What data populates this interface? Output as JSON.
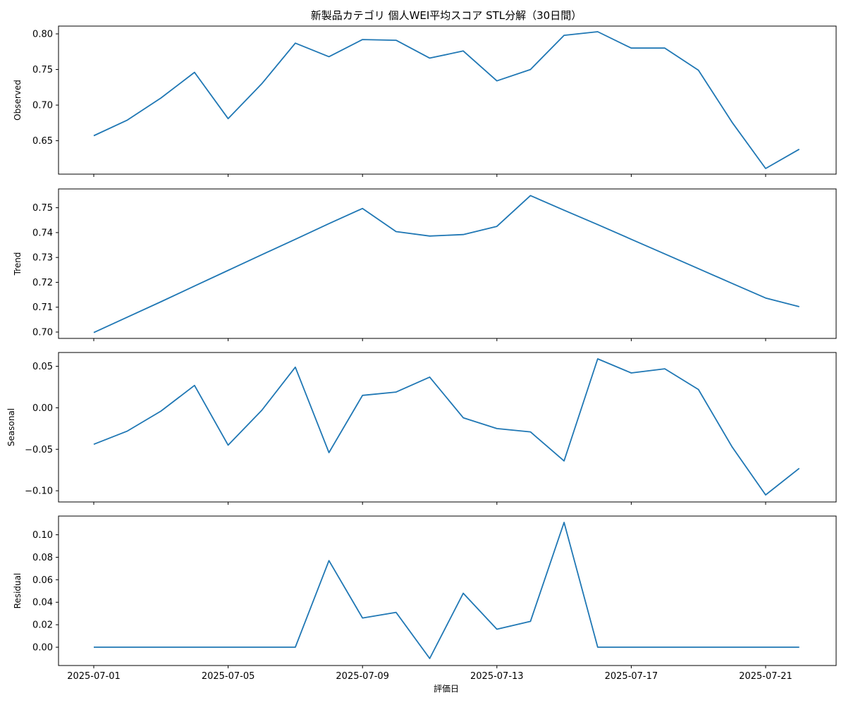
{
  "chart_data": {
    "type": "line",
    "title": "新製品カテゴリ 個人WEI平均スコア STL分解（30日間）",
    "xlabel": "評価日",
    "x": [
      "2025-07-01",
      "2025-07-02",
      "2025-07-03",
      "2025-07-04",
      "2025-07-05",
      "2025-07-06",
      "2025-07-07",
      "2025-07-08",
      "2025-07-09",
      "2025-07-10",
      "2025-07-11",
      "2025-07-12",
      "2025-07-13",
      "2025-07-14",
      "2025-07-15",
      "2025-07-16",
      "2025-07-17",
      "2025-07-18",
      "2025-07-19",
      "2025-07-20",
      "2025-07-21",
      "2025-07-22"
    ],
    "xticks": [
      "2025-07-01",
      "2025-07-05",
      "2025-07-09",
      "2025-07-13",
      "2025-07-17",
      "2025-07-21"
    ],
    "color": "#1f77b4",
    "grid": false,
    "panels": [
      {
        "ylabel": "Observed",
        "ylim": [
          0.611,
          0.803
        ],
        "yticks": [
          "0.65",
          "0.70",
          "0.75",
          "0.80"
        ],
        "values": [
          0.657,
          0.679,
          0.71,
          0.746,
          0.681,
          0.73,
          0.787,
          0.768,
          0.792,
          0.791,
          0.766,
          0.776,
          0.734,
          0.75,
          0.798,
          0.803,
          0.78,
          0.78,
          0.749,
          0.676,
          0.611,
          0.638
        ]
      },
      {
        "ylabel": "Trend",
        "ylim": [
          0.7,
          0.755
        ],
        "yticks": [
          "0.70",
          "0.71",
          "0.72",
          "0.73",
          "0.74",
          "0.75"
        ],
        "values": [
          0.6998,
          0.706,
          0.7122,
          0.7185,
          0.7248,
          0.7311,
          0.7373,
          0.7436,
          0.7497,
          0.7404,
          0.7386,
          0.7392,
          0.7425,
          0.7549,
          0.749,
          0.7432,
          0.7373,
          0.7314,
          0.7255,
          0.7196,
          0.7137,
          0.7102
        ]
      },
      {
        "ylabel": "Seasonal",
        "ylim": [
          -0.105,
          0.059
        ],
        "yticks": [
          "0.05",
          "0.00",
          "−0.05",
          "−0.10"
        ],
        "values": [
          -0.044,
          -0.028,
          -0.004,
          0.027,
          -0.045,
          -0.003,
          0.049,
          -0.054,
          0.015,
          0.019,
          0.037,
          -0.012,
          -0.025,
          -0.029,
          -0.064,
          0.059,
          0.042,
          0.047,
          0.022,
          -0.047,
          -0.105,
          -0.073
        ]
      },
      {
        "ylabel": "Residual",
        "ylim": [
          -0.01,
          0.111
        ],
        "yticks": [
          "0.10",
          "0.08",
          "0.06",
          "0.04",
          "0.02",
          "0.00"
        ],
        "values": [
          0,
          0,
          0,
          0,
          0,
          0,
          0,
          0.077,
          0.026,
          0.031,
          -0.01,
          0.048,
          0.016,
          0.023,
          0.111,
          0,
          0,
          0,
          0,
          0,
          0,
          0
        ]
      }
    ]
  }
}
